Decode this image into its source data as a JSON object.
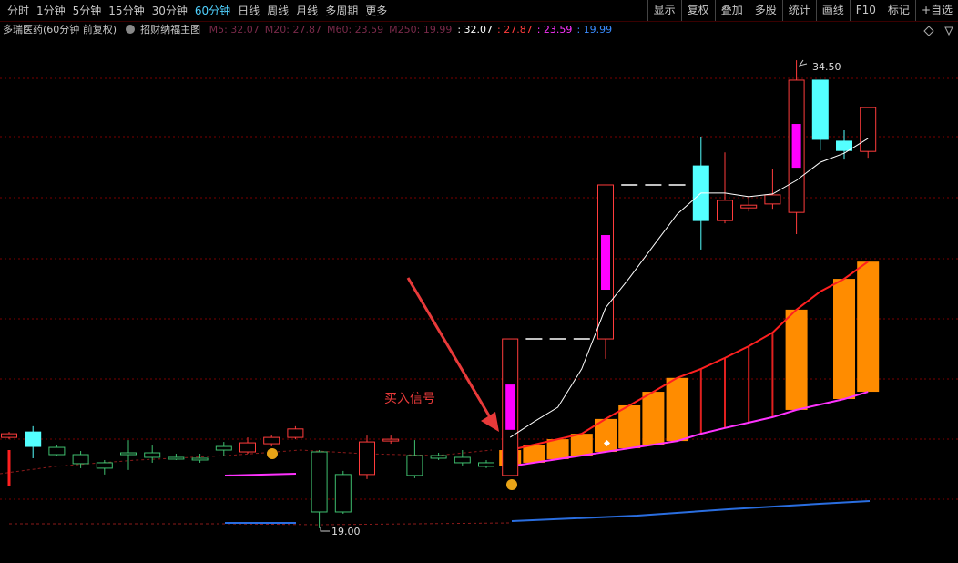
{
  "toolbar": {
    "periods": [
      "分时",
      "1分钟",
      "5分钟",
      "15分钟",
      "30分钟",
      "60分钟",
      "日线",
      "周线",
      "月线",
      "多周期",
      "更多"
    ],
    "active": 5,
    "tools": [
      "显示",
      "复权",
      "叠加",
      "多股",
      "统计",
      "画线",
      "F10",
      "标记",
      "+自选"
    ]
  },
  "info": {
    "stock": "多瑞医药(60分钟 前复权)",
    "indicator": "招财纳福主图",
    "legend": [
      "M5: 32.07",
      "M20: 27.87",
      "M60: 23.59",
      "M250: 19.99"
    ],
    "values": [
      {
        "text": ": 32.07",
        "color": "#ffffff"
      },
      {
        "text": ": 27.87",
        "color": "#ff3c3c"
      },
      {
        "text": ": 23.59",
        "color": "#ff33ff"
      },
      {
        "text": ": 19.99",
        "color": "#3a8cff"
      }
    ]
  },
  "chart": {
    "ylim": [
      17.85,
      35.83
    ],
    "candles": [
      {
        "o": 22.01,
        "h": 22.19,
        "l": 21.95,
        "c": 22.13,
        "color": "#ff3c3c"
      },
      {
        "o": 22.19,
        "h": 22.38,
        "l": 21.32,
        "c": 21.71,
        "color": "#54ffff",
        "filled": true
      },
      {
        "o": 21.68,
        "h": 21.77,
        "l": 21.41,
        "c": 21.44,
        "color": "#3fbf6f"
      },
      {
        "o": 21.44,
        "h": 21.56,
        "l": 20.99,
        "c": 21.14,
        "color": "#3fbf6f"
      },
      {
        "o": 21.17,
        "h": 21.26,
        "l": 20.78,
        "c": 20.99,
        "color": "#3fbf6f"
      },
      {
        "o": 21.5,
        "h": 21.92,
        "l": 20.93,
        "c": 21.44,
        "color": "#3fbf6f"
      },
      {
        "o": 21.5,
        "h": 21.74,
        "l": 21.17,
        "c": 21.35,
        "color": "#3fbf6f"
      },
      {
        "o": 21.35,
        "h": 21.47,
        "l": 21.26,
        "c": 21.29,
        "color": "#3fbf6f"
      },
      {
        "o": 21.32,
        "h": 21.47,
        "l": 21.17,
        "c": 21.26,
        "color": "#3fbf6f"
      },
      {
        "o": 21.71,
        "h": 21.86,
        "l": 21.41,
        "c": 21.59,
        "color": "#3fbf6f"
      },
      {
        "o": 21.53,
        "h": 22.01,
        "l": 21.47,
        "c": 21.83,
        "color": "#ff3c3c"
      },
      {
        "o": 21.8,
        "h": 22.1,
        "l": 21.71,
        "c": 22.01,
        "color": "#ff3c3c"
      },
      {
        "o": 22.01,
        "h": 22.38,
        "l": 21.95,
        "c": 22.29,
        "color": "#ff3c3c"
      },
      {
        "o": 21.53,
        "h": 21.59,
        "l": 19.0,
        "c": 19.54,
        "color": "#3fbf6f"
      },
      {
        "o": 20.78,
        "h": 20.9,
        "l": 19.48,
        "c": 19.54,
        "color": "#3fbf6f"
      },
      {
        "o": 20.78,
        "h": 22.07,
        "l": 20.63,
        "c": 21.86,
        "color": "#ff3c3c"
      },
      {
        "o": 21.89,
        "h": 22.07,
        "l": 21.8,
        "c": 21.95,
        "color": "#ff3c3c"
      },
      {
        "o": 21.41,
        "h": 21.92,
        "l": 20.66,
        "c": 20.75,
        "color": "#3fbf6f"
      },
      {
        "o": 21.41,
        "h": 21.5,
        "l": 21.26,
        "c": 21.32,
        "color": "#3fbf6f"
      },
      {
        "o": 21.35,
        "h": 21.59,
        "l": 21.08,
        "c": 21.17,
        "color": "#3fbf6f"
      },
      {
        "o": 21.17,
        "h": 21.26,
        "l": 20.99,
        "c": 21.05,
        "color": "#3fbf6f"
      },
      {
        "o": 20.75,
        "h": 25.27,
        "l": 20.72,
        "c": 25.27,
        "color": "#ff3c3c",
        "inner": [
          23.76,
          22.26
        ]
      },
      {
        "o": 25.27,
        "h": 25.27,
        "l": 25.27,
        "c": 25.27,
        "color": "#ffffff"
      },
      {
        "o": 25.27,
        "h": 25.27,
        "l": 25.27,
        "c": 25.27,
        "color": "#ffffff"
      },
      {
        "o": 25.27,
        "h": 25.27,
        "l": 25.27,
        "c": 25.27,
        "color": "#ffffff"
      },
      {
        "o": 25.27,
        "h": 30.37,
        "l": 24.61,
        "c": 30.37,
        "color": "#ff3c3c",
        "inner": [
          28.71,
          26.9
        ]
      },
      {
        "o": 30.37,
        "h": 30.37,
        "l": 30.37,
        "c": 30.37,
        "color": "#ffffff"
      },
      {
        "o": 30.37,
        "h": 30.37,
        "l": 30.37,
        "c": 30.37,
        "color": "#ffffff"
      },
      {
        "o": 30.37,
        "h": 30.37,
        "l": 30.37,
        "c": 30.37,
        "color": "#ffffff"
      },
      {
        "o": 31.0,
        "h": 31.97,
        "l": 28.23,
        "c": 29.19,
        "color": "#54ffff",
        "filled": true
      },
      {
        "o": 29.19,
        "h": 31.45,
        "l": 29.1,
        "c": 29.86,
        "color": "#ff3c3c"
      },
      {
        "o": 29.61,
        "h": 29.98,
        "l": 29.49,
        "c": 29.7,
        "color": "#ff3c3c"
      },
      {
        "o": 29.74,
        "h": 30.91,
        "l": 29.58,
        "c": 30.04,
        "color": "#ff3c3c"
      },
      {
        "o": 29.46,
        "h": 34.5,
        "l": 28.74,
        "c": 33.84,
        "color": "#ff3c3c",
        "inner": [
          32.39,
          30.94
        ]
      },
      {
        "o": 33.84,
        "h": 33.84,
        "l": 31.51,
        "c": 31.88,
        "color": "#54ffff",
        "filled": true
      },
      {
        "o": 31.82,
        "h": 32.18,
        "l": 31.21,
        "c": 31.51,
        "color": "#54ffff",
        "filled": true
      },
      {
        "o": 31.48,
        "h": 32.93,
        "l": 31.27,
        "c": 32.93,
        "color": "#ff3c3c"
      }
    ],
    "white_line": [
      null,
      null,
      null,
      null,
      null,
      null,
      null,
      null,
      null,
      null,
      null,
      null,
      null,
      null,
      null,
      null,
      null,
      null,
      null,
      null,
      null,
      22.01,
      22.53,
      23.01,
      24.28,
      26.3,
      27.29,
      28.35,
      29.4,
      30.1,
      30.1,
      29.98,
      30.07,
      30.52,
      31.12,
      31.42,
      31.91
    ],
    "band_upper": [
      null,
      null,
      null,
      null,
      null,
      null,
      null,
      null,
      null,
      null,
      null,
      null,
      null,
      null,
      null,
      null,
      null,
      null,
      null,
      null,
      null,
      21.59,
      21.77,
      21.95,
      22.13,
      22.62,
      23.07,
      23.52,
      23.98,
      24.28,
      24.64,
      25.03,
      25.48,
      26.24,
      26.84,
      27.26,
      27.83
    ],
    "band_lower": [
      null,
      null,
      null,
      null,
      null,
      null,
      null,
      null,
      null,
      null,
      null,
      null,
      null,
      null,
      null,
      null,
      null,
      null,
      null,
      null,
      null,
      21.05,
      21.17,
      21.29,
      21.41,
      21.53,
      21.65,
      21.77,
      21.89,
      22.13,
      22.32,
      22.5,
      22.68,
      22.92,
      23.1,
      23.28,
      23.52
    ],
    "band_fill": [
      null,
      null,
      null,
      null,
      null,
      null,
      null,
      null,
      null,
      null,
      null,
      null,
      null,
      null,
      null,
      null,
      null,
      null,
      null,
      null,
      null,
      "#ff8c00",
      "#ff8c00",
      "#ff8c00",
      "#ff8c00",
      "#ff8c00",
      "#ff8c00",
      "#ff8c00",
      "#ff8c00",
      "#e0201f",
      "#e0201f",
      "#e0201f",
      "#e0201f",
      "#ff8c00",
      null,
      "#ff8c00",
      "#ff8c00"
    ],
    "high_label": "34.50",
    "low_label": "19.00",
    "signal": "买入信号"
  }
}
